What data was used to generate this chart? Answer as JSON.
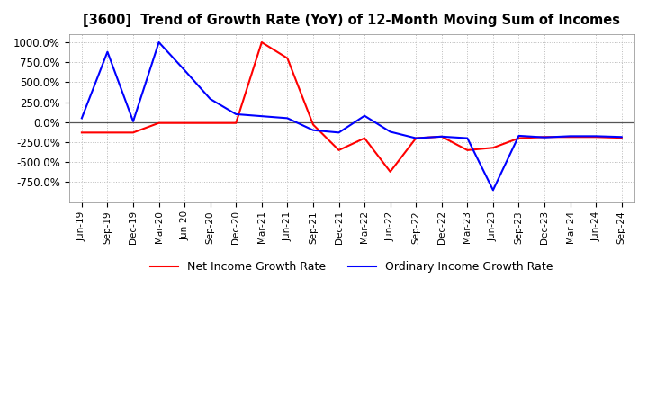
{
  "title": "[3600]  Trend of Growth Rate (YoY) of 12-Month Moving Sum of Incomes",
  "ylim": [
    -1000,
    1100
  ],
  "yticks": [
    -750,
    -500,
    -250,
    0,
    250,
    500,
    750,
    1000
  ],
  "background_color": "#ffffff",
  "plot_bg_color": "#ffffff",
  "grid_color": "#bbbbbb",
  "zero_line_color": "#555555",
  "ordinary_color": "#0000ff",
  "net_color": "#ff0000",
  "legend_ordinary": "Ordinary Income Growth Rate",
  "legend_net": "Net Income Growth Rate",
  "x_labels": [
    "Jun-19",
    "Sep-19",
    "Dec-19",
    "Mar-20",
    "Jun-20",
    "Sep-20",
    "Dec-20",
    "Mar-21",
    "Jun-21",
    "Sep-21",
    "Dec-21",
    "Mar-22",
    "Jun-22",
    "Sep-22",
    "Dec-22",
    "Mar-23",
    "Jun-23",
    "Sep-23",
    "Dec-23",
    "Mar-24",
    "Jun-24",
    "Sep-24"
  ],
  "ordinary": [
    50,
    880,
    10,
    1000,
    650,
    290,
    100,
    75,
    50,
    -100,
    -130,
    80,
    -120,
    -200,
    -180,
    -200,
    -850,
    -170,
    -190,
    -175,
    -175,
    -185
  ],
  "net": [
    -130,
    -130,
    -130,
    -10,
    -10,
    -10,
    -10,
    1000,
    800,
    -30,
    -350,
    -200,
    -620,
    -200,
    -180,
    -350,
    -320,
    -200,
    -185,
    -185,
    -185,
    -195
  ]
}
